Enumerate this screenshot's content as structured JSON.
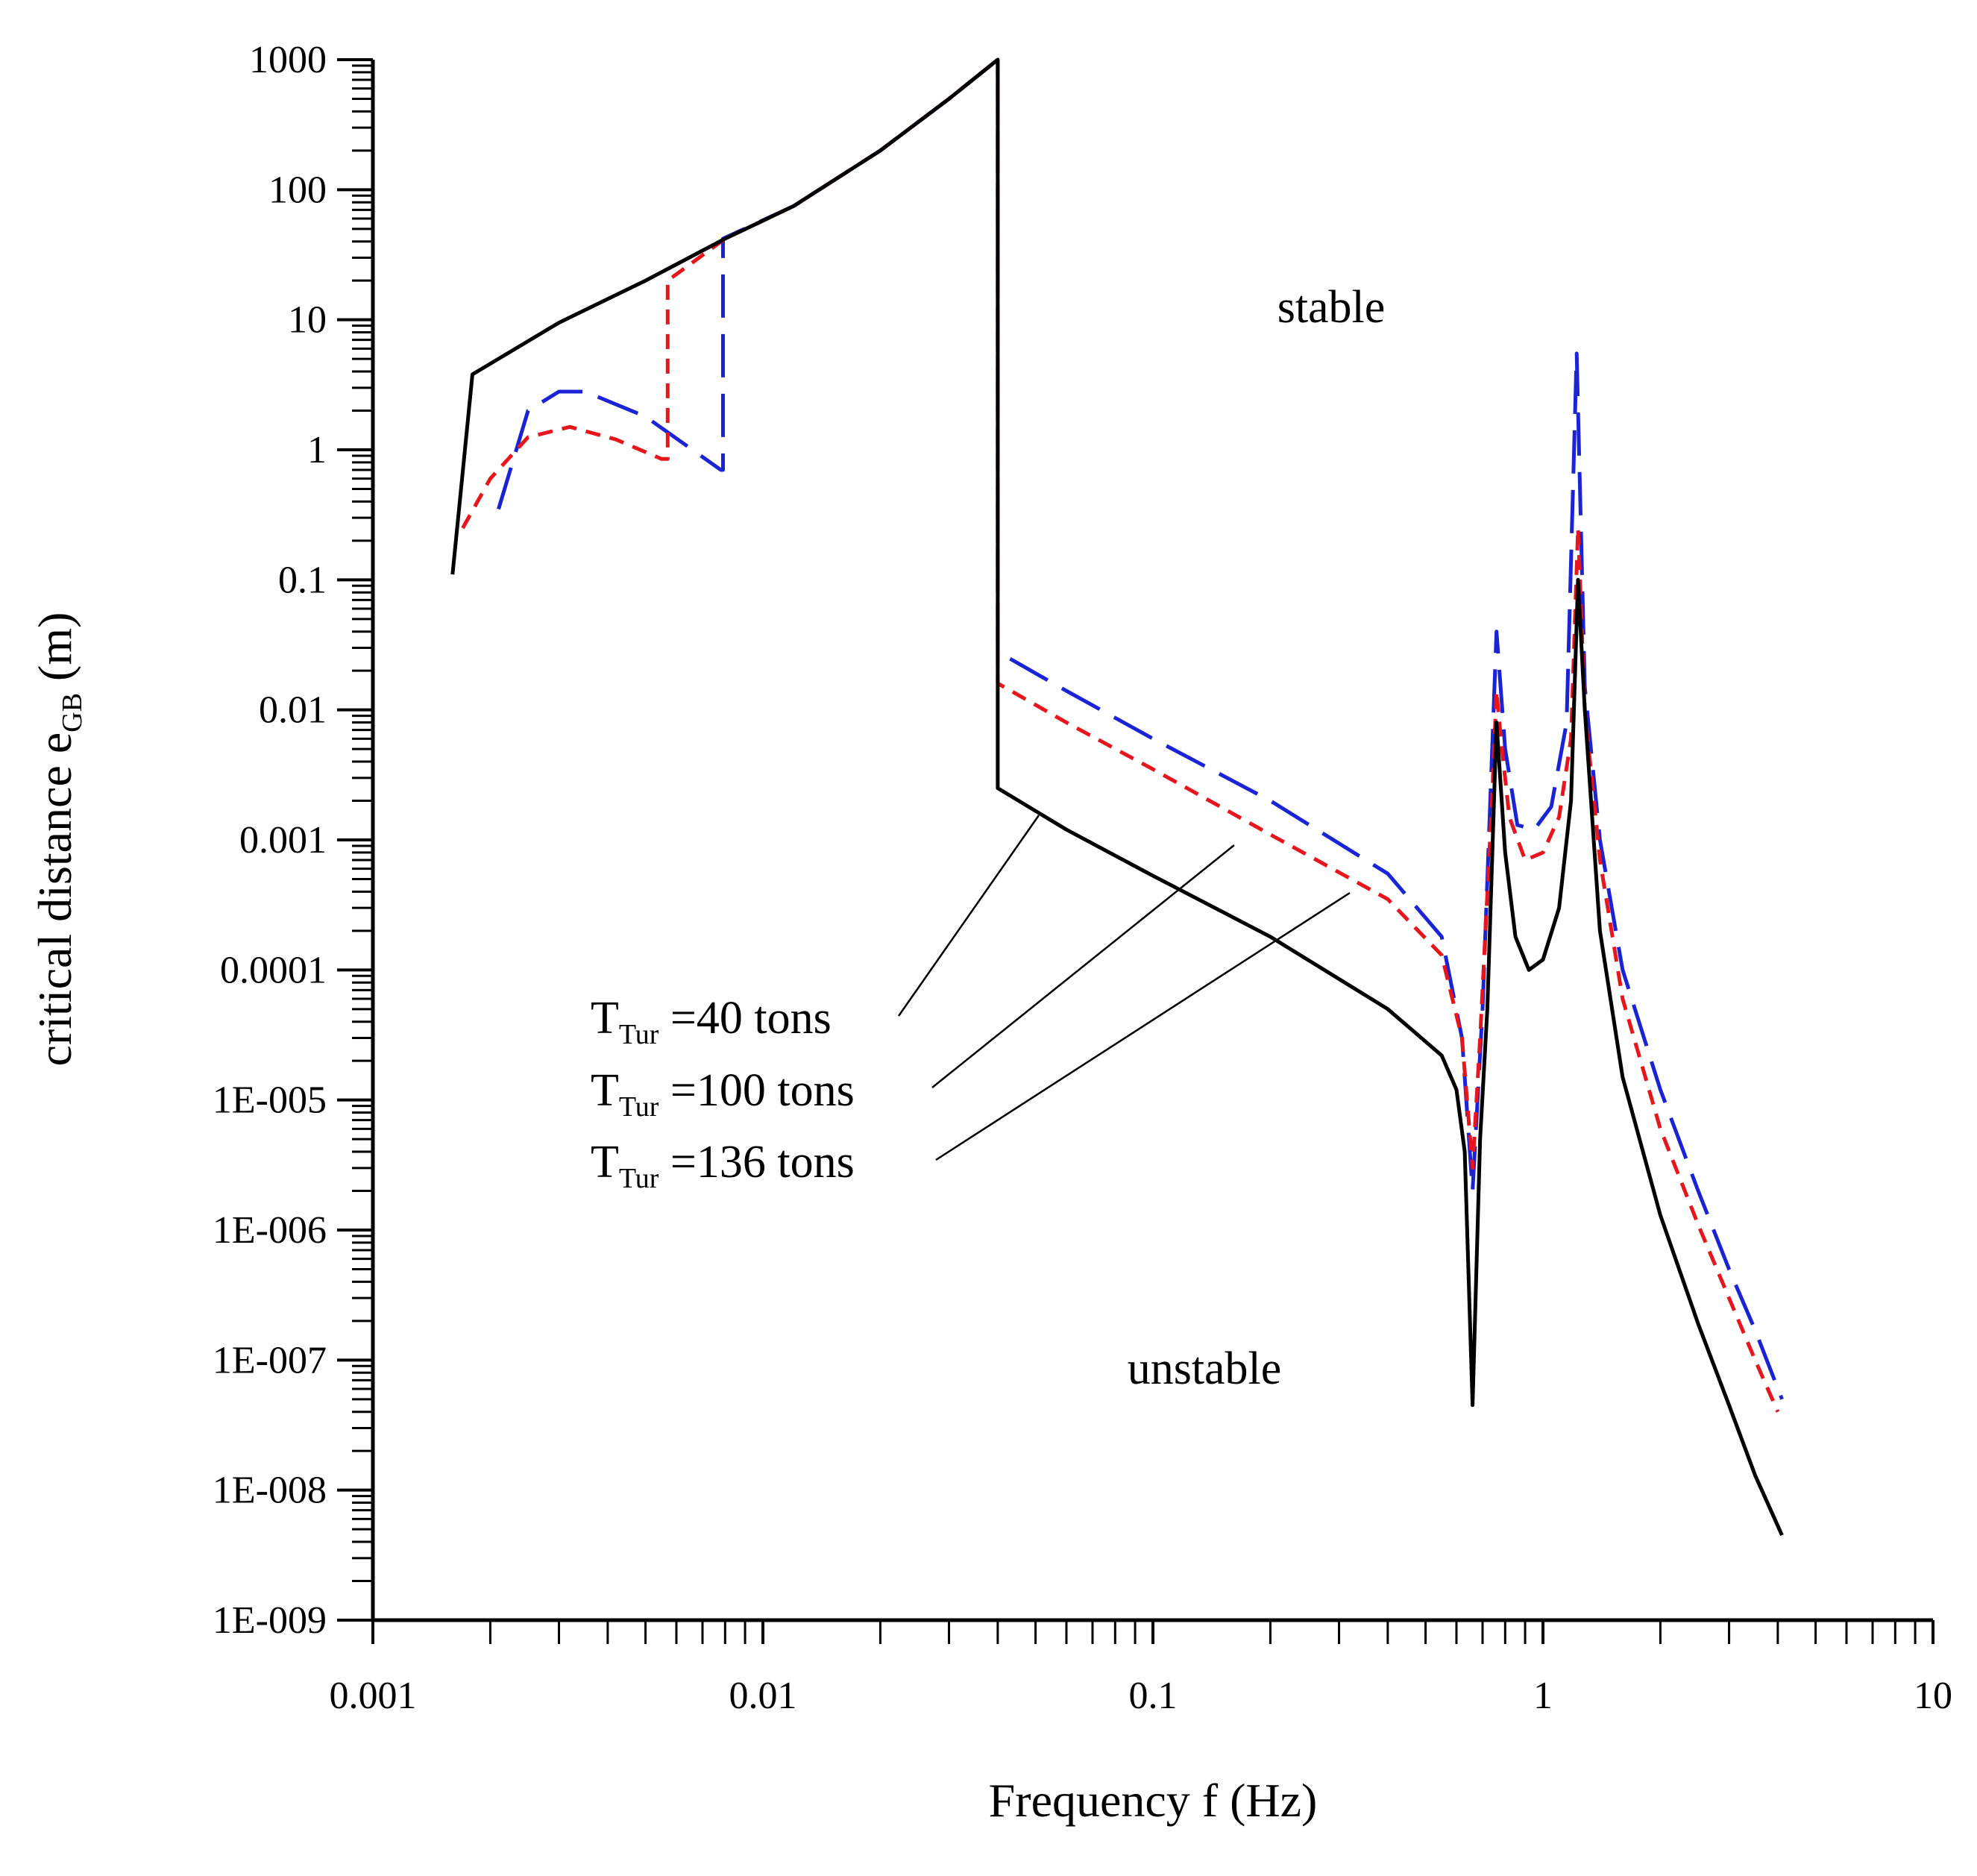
{
  "chart_data": {
    "type": "line",
    "xscale": "log",
    "yscale": "log",
    "xlabel": "Frequency f (Hz)",
    "ylabel_main": "critical distance e",
    "ylabel_sub": "GB",
    "ylabel_unit": " (m)",
    "xlim": [
      0.001,
      10
    ],
    "ylim": [
      1e-09,
      1000
    ],
    "x_tick_labels": [
      "0.001",
      "0.01",
      "0.1",
      "1",
      "10"
    ],
    "y_tick_labels": [
      "1E-009",
      "1E-008",
      "1E-007",
      "1E-006",
      "1E-005",
      "0.0001",
      "0.001",
      "0.01",
      "0.1",
      "1",
      "10",
      "100",
      "1000"
    ],
    "region_labels": {
      "stable": "stable",
      "unstable": "unstable"
    },
    "series": [
      {
        "name": "T_Tur = 40 tons",
        "label_main": "T",
        "label_sub": "Tur",
        "label_rest": " =40 tons",
        "color": "#000000",
        "dash": "solid",
        "points": [
          [
            0.0016,
            0.11
          ],
          [
            0.0018,
            3.8
          ],
          [
            0.003,
            9.5
          ],
          [
            0.005,
            20
          ],
          [
            0.008,
            42
          ],
          [
            0.012,
            75
          ],
          [
            0.02,
            200
          ],
          [
            0.03,
            500
          ],
          [
            0.04,
            1000
          ],
          [
            0.04,
            0.0025
          ],
          [
            0.06,
            0.0012
          ],
          [
            0.1,
            0.00053
          ],
          [
            0.2,
            0.00018
          ],
          [
            0.4,
            5e-05
          ],
          [
            0.55,
            2.2e-05
          ],
          [
            0.6,
            1.2e-05
          ],
          [
            0.63,
            4e-06
          ],
          [
            0.66,
            4.5e-08
          ],
          [
            0.69,
            5e-06
          ],
          [
            0.72,
            5e-05
          ],
          [
            0.76,
            0.008
          ],
          [
            0.8,
            0.0008
          ],
          [
            0.85,
            0.00018
          ],
          [
            0.92,
            0.0001
          ],
          [
            1.0,
            0.00012
          ],
          [
            1.1,
            0.0003
          ],
          [
            1.18,
            0.002
          ],
          [
            1.23,
            0.1
          ],
          [
            1.28,
            0.01
          ],
          [
            1.4,
            0.0002
          ],
          [
            1.6,
            1.5e-05
          ],
          [
            2.0,
            1.3e-06
          ],
          [
            2.5,
            1.9e-07
          ],
          [
            3.0,
            4.5e-08
          ],
          [
            3.5,
            1.3e-08
          ],
          [
            4.1,
            4.5e-09
          ]
        ]
      },
      {
        "name": "T_Tur = 100 tons",
        "label_main": "T",
        "label_sub": "Tur",
        "label_rest": " =100 tons",
        "color": "#e8161c",
        "dash": "short",
        "points": [
          [
            0.0017,
            0.25
          ],
          [
            0.002,
            0.6
          ],
          [
            0.0025,
            1.25
          ],
          [
            0.0032,
            1.5
          ],
          [
            0.0042,
            1.2
          ],
          [
            0.0055,
            0.85
          ],
          [
            0.0057,
            0.85
          ],
          [
            0.0057,
            20
          ],
          [
            0.008,
            42
          ],
          [
            0.012,
            75
          ],
          [
            0.02,
            200
          ],
          [
            0.03,
            500
          ],
          [
            0.04,
            1000
          ],
          [
            0.04,
            0.016
          ],
          [
            0.06,
            0.008
          ],
          [
            0.1,
            0.0035
          ],
          [
            0.2,
            0.0011
          ],
          [
            0.4,
            0.00035
          ],
          [
            0.55,
            0.00013
          ],
          [
            0.62,
            3e-05
          ],
          [
            0.66,
            3e-06
          ],
          [
            0.69,
            3e-05
          ],
          [
            0.74,
            0.002
          ],
          [
            0.76,
            0.014
          ],
          [
            0.78,
            0.006
          ],
          [
            0.82,
            0.0015
          ],
          [
            0.9,
            0.0007
          ],
          [
            1.0,
            0.0008
          ],
          [
            1.1,
            0.0015
          ],
          [
            1.18,
            0.006
          ],
          [
            1.23,
            0.25
          ],
          [
            1.28,
            0.01
          ],
          [
            1.4,
            0.0007
          ],
          [
            1.6,
            6e-05
          ],
          [
            2.0,
            6e-06
          ],
          [
            2.5,
            1.1e-06
          ],
          [
            3.0,
            3e-07
          ],
          [
            3.5,
            1e-07
          ],
          [
            4.0,
            4e-08
          ]
        ]
      },
      {
        "name": "T_Tur = 136 tons",
        "label_main": "T",
        "label_sub": "Tur",
        "label_rest": " =136 tons",
        "color": "#1a23d6",
        "dash": "long",
        "points": [
          [
            0.0021,
            0.35
          ],
          [
            0.0025,
            2.0
          ],
          [
            0.003,
            2.8
          ],
          [
            0.0035,
            2.8
          ],
          [
            0.005,
            1.8
          ],
          [
            0.0078,
            0.7
          ],
          [
            0.0079,
            0.7
          ],
          [
            0.0079,
            42
          ],
          [
            0.012,
            75
          ],
          [
            0.02,
            200
          ],
          [
            0.03,
            500
          ],
          [
            0.04,
            1000
          ],
          [
            0.04,
            0.028
          ],
          [
            0.06,
            0.014
          ],
          [
            0.1,
            0.006
          ],
          [
            0.2,
            0.002
          ],
          [
            0.4,
            0.00055
          ],
          [
            0.55,
            0.00018
          ],
          [
            0.62,
            3e-05
          ],
          [
            0.66,
            2e-06
          ],
          [
            0.7,
            5e-05
          ],
          [
            0.76,
            0.04
          ],
          [
            0.8,
            0.005
          ],
          [
            0.86,
            0.0013
          ],
          [
            0.95,
            0.0012
          ],
          [
            1.05,
            0.0018
          ],
          [
            1.15,
            0.008
          ],
          [
            1.22,
            5.5
          ],
          [
            1.28,
            0.015
          ],
          [
            1.4,
            0.001
          ],
          [
            1.6,
            0.0001
          ],
          [
            2.0,
            1.2e-05
          ],
          [
            2.5,
            2e-06
          ],
          [
            3.0,
            5e-07
          ],
          [
            3.5,
            1.7e-07
          ],
          [
            4.1,
            5e-08
          ]
        ]
      }
    ]
  }
}
